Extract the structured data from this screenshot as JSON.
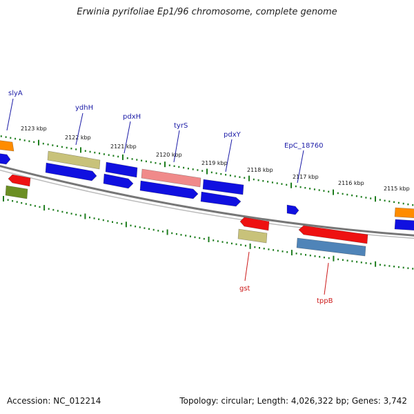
{
  "title": "Erwinia pyrifoliae Ep1/96 chromosome, complete genome",
  "footer": {
    "accession": "Accession: NC_012214",
    "summary": "Topology: circular; Length: 4,026,322 bp; Genes: 3,742"
  },
  "scale": {
    "tick_labels": [
      "2123 kbp",
      "2122 kbp",
      "2121 kbp",
      "2120 kbp",
      "2119 kbp",
      "2118 kbp",
      "2117 kbp",
      "2116 kbp",
      "2115 kbp"
    ],
    "tick_color": "#1e7d1e"
  },
  "backbone_color": "#777777",
  "gene_labels": {
    "forward_color": "#1a1aa6",
    "reverse_color": "#cc1a1a",
    "items": [
      {
        "name": "slyA",
        "strand": "forward"
      },
      {
        "name": "ydhH",
        "strand": "forward"
      },
      {
        "name": "pdxH",
        "strand": "forward"
      },
      {
        "name": "tyrS",
        "strand": "forward"
      },
      {
        "name": "pdxY",
        "strand": "forward"
      },
      {
        "name": "EpC_18760",
        "strand": "forward"
      },
      {
        "name": "gst",
        "strand": "reverse"
      },
      {
        "name": "tppB",
        "strand": "reverse"
      }
    ]
  },
  "feature_colors": {
    "blue": "#1010e0",
    "orange": "#ff8c00",
    "khaki": "#c8c27a",
    "salmon": "#f08a8a",
    "red": "#ee1111",
    "olive": "#6b8e23",
    "steel": "#4f84b8"
  }
}
